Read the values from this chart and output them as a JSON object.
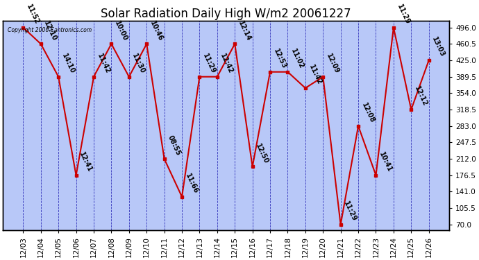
{
  "title": "Solar Radiation Daily High W/m2 20061227",
  "copyright": "Copyright 2006 Cantronics.com",
  "dates": [
    "12/03",
    "12/04",
    "12/05",
    "12/06",
    "12/07",
    "12/08",
    "12/09",
    "12/10",
    "12/11",
    "12/12",
    "12/13",
    "12/14",
    "12/15",
    "12/16",
    "12/17",
    "12/18",
    "12/19",
    "12/20",
    "12/21",
    "12/22",
    "12/23",
    "12/24",
    "12/25",
    "12/26"
  ],
  "values": [
    496.0,
    460.5,
    389.5,
    176.5,
    389.5,
    460.5,
    389.5,
    460.5,
    212.0,
    130.0,
    389.5,
    389.5,
    460.5,
    195.0,
    400.0,
    400.0,
    365.0,
    389.5,
    70.0,
    283.0,
    176.5,
    496.0,
    318.5,
    425.0
  ],
  "labels": [
    "11:52",
    "12:10",
    "14:10",
    "12:41",
    "11:42",
    "10:00",
    "11:30",
    "10:46",
    "08:55",
    "11:66",
    "11:29",
    "12:42",
    "12:14",
    "12:50",
    "12:53",
    "11:02",
    "11:42",
    "12:09",
    "11:29",
    "12:08",
    "10:41",
    "11:29",
    "12:12",
    "13:03"
  ],
  "yticks": [
    70.0,
    105.5,
    141.0,
    176.5,
    212.0,
    247.5,
    283.0,
    318.5,
    354.0,
    389.5,
    425.0,
    460.5,
    496.0
  ],
  "ymin": 58.0,
  "ymax": 510.0,
  "line_color": "#cc0000",
  "bg_color": "#b8c8f8",
  "grid_color": "#3333bb",
  "title_fontsize": 12,
  "annot_fontsize": 7,
  "tick_fontsize": 7.5,
  "fig_width": 6.9,
  "fig_height": 3.75,
  "dpi": 100
}
